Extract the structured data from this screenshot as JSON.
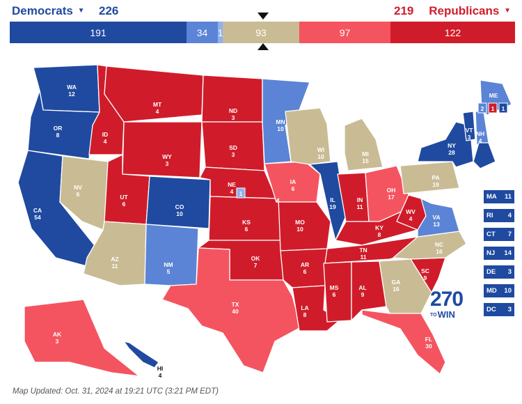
{
  "header": {
    "dem_label": "Democrats",
    "dem_total": "226",
    "rep_total": "219",
    "rep_label": "Republicans"
  },
  "bar": [
    {
      "label": "191",
      "value": 191,
      "color": "#1f4aa0"
    },
    {
      "label": "34",
      "value": 34,
      "color": "#5b84d6"
    },
    {
      "label": "1",
      "value": 1,
      "color": "#8fb0ee"
    },
    {
      "label": "93",
      "value": 93,
      "color": "#c9bb94"
    },
    {
      "label": "97",
      "value": 97,
      "color": "#f4545f"
    },
    {
      "label": "122",
      "value": 122,
      "color": "#d01c2a"
    }
  ],
  "colors": {
    "safe_dem": "#1f4aa0",
    "likely_dem": "#5b84d6",
    "leans_dem": "#8fb0ee",
    "tossup": "#c9bb94",
    "likely_rep": "#f4545f",
    "safe_rep": "#d01c2a"
  },
  "states": [
    {
      "abbr": "WA",
      "ev": "12",
      "rating": "safe_dem"
    },
    {
      "abbr": "OR",
      "ev": "8",
      "rating": "safe_dem"
    },
    {
      "abbr": "CA",
      "ev": "54",
      "rating": "safe_dem"
    },
    {
      "abbr": "NV",
      "ev": "6",
      "rating": "tossup"
    },
    {
      "abbr": "ID",
      "ev": "4",
      "rating": "safe_rep"
    },
    {
      "abbr": "MT",
      "ev": "4",
      "rating": "safe_rep"
    },
    {
      "abbr": "WY",
      "ev": "3",
      "rating": "safe_rep"
    },
    {
      "abbr": "UT",
      "ev": "6",
      "rating": "safe_rep"
    },
    {
      "abbr": "AZ",
      "ev": "11",
      "rating": "tossup"
    },
    {
      "abbr": "CO",
      "ev": "10",
      "rating": "safe_dem"
    },
    {
      "abbr": "NM",
      "ev": "5",
      "rating": "likely_dem"
    },
    {
      "abbr": "ND",
      "ev": "3",
      "rating": "safe_rep"
    },
    {
      "abbr": "SD",
      "ev": "3",
      "rating": "safe_rep"
    },
    {
      "abbr": "NE",
      "ev": "4",
      "rating": "safe_rep"
    },
    {
      "abbr": "KS",
      "ev": "6",
      "rating": "safe_rep"
    },
    {
      "abbr": "OK",
      "ev": "7",
      "rating": "safe_rep"
    },
    {
      "abbr": "TX",
      "ev": "40",
      "rating": "likely_rep"
    },
    {
      "abbr": "MN",
      "ev": "10",
      "rating": "likely_dem"
    },
    {
      "abbr": "IA",
      "ev": "6",
      "rating": "likely_rep"
    },
    {
      "abbr": "MO",
      "ev": "10",
      "rating": "safe_rep"
    },
    {
      "abbr": "AR",
      "ev": "6",
      "rating": "safe_rep"
    },
    {
      "abbr": "LA",
      "ev": "8",
      "rating": "safe_rep"
    },
    {
      "abbr": "WI",
      "ev": "10",
      "rating": "tossup"
    },
    {
      "abbr": "IL",
      "ev": "19",
      "rating": "safe_dem"
    },
    {
      "abbr": "MI",
      "ev": "15",
      "rating": "tossup"
    },
    {
      "abbr": "IN",
      "ev": "11",
      "rating": "safe_rep"
    },
    {
      "abbr": "OH",
      "ev": "17",
      "rating": "likely_rep"
    },
    {
      "abbr": "KY",
      "ev": "8",
      "rating": "safe_rep"
    },
    {
      "abbr": "TN",
      "ev": "11",
      "rating": "safe_rep"
    },
    {
      "abbr": "MS",
      "ev": "6",
      "rating": "safe_rep"
    },
    {
      "abbr": "AL",
      "ev": "9",
      "rating": "safe_rep"
    },
    {
      "abbr": "GA",
      "ev": "16",
      "rating": "tossup"
    },
    {
      "abbr": "FL",
      "ev": "30",
      "rating": "likely_rep"
    },
    {
      "abbr": "SC",
      "ev": "9",
      "rating": "safe_rep"
    },
    {
      "abbr": "NC",
      "ev": "16",
      "rating": "tossup"
    },
    {
      "abbr": "VA",
      "ev": "13",
      "rating": "likely_dem"
    },
    {
      "abbr": "WV",
      "ev": "4",
      "rating": "safe_rep"
    },
    {
      "abbr": "PA",
      "ev": "19",
      "rating": "tossup"
    },
    {
      "abbr": "NY",
      "ev": "28",
      "rating": "safe_dem"
    },
    {
      "abbr": "VT",
      "ev": "3",
      "rating": "safe_dem"
    },
    {
      "abbr": "NH",
      "ev": "4",
      "rating": "likely_dem"
    },
    {
      "abbr": "ME",
      "ev": "",
      "rating": "likely_dem"
    },
    {
      "abbr": "AK",
      "ev": "3",
      "rating": "likely_rep"
    },
    {
      "abbr": "HI",
      "ev": "4",
      "rating": "safe_dem"
    }
  ],
  "maine_districts": [
    "2",
    "1",
    "1"
  ],
  "nebraska_district": "1",
  "small_states": [
    {
      "abbr": "MA",
      "ev": "11"
    },
    {
      "abbr": "RI",
      "ev": "4"
    },
    {
      "abbr": "CT",
      "ev": "7"
    },
    {
      "abbr": "NJ",
      "ev": "14"
    },
    {
      "abbr": "DE",
      "ev": "3"
    },
    {
      "abbr": "MD",
      "ev": "10"
    },
    {
      "abbr": "DC",
      "ev": "3"
    }
  ],
  "logo": {
    "number": "270",
    "prefix": "TO",
    "word": "WIN"
  },
  "footer": "Map Updated: Oct. 31, 2024 at 19:21 UTC (3:21 PM EDT)"
}
